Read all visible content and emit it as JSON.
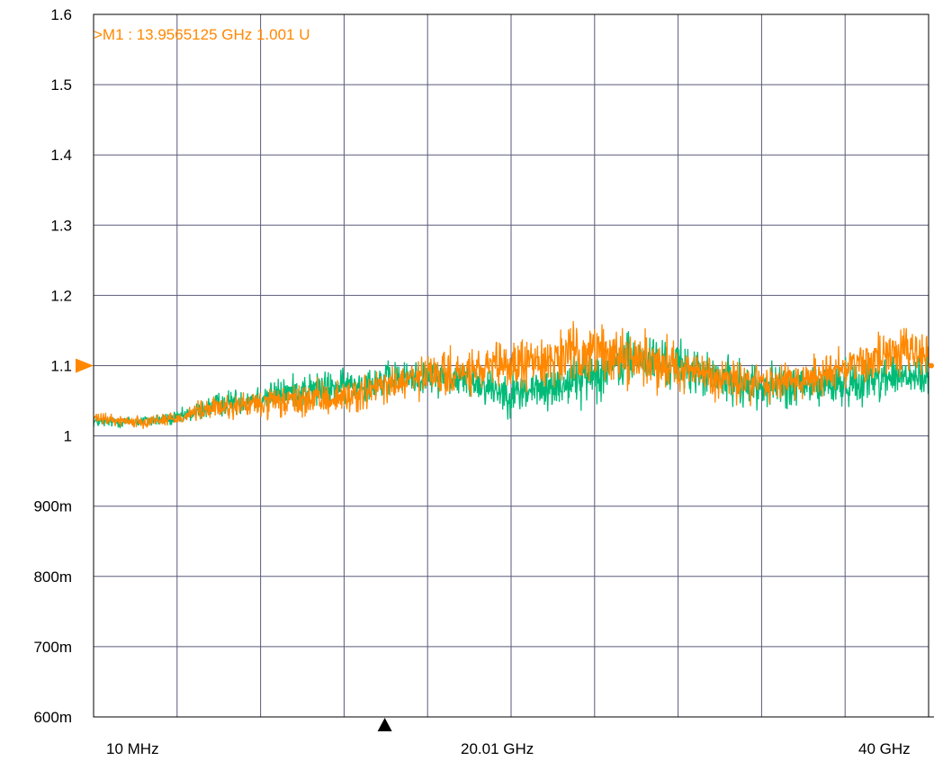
{
  "chart_data": {
    "type": "line",
    "title": "",
    "xlabel": "",
    "ylabel": "",
    "xlim_ghz": [
      0.01,
      40
    ],
    "ylim": [
      0.6,
      1.6
    ],
    "y_ticks": [
      {
        "value": 1.6,
        "label": "1.6"
      },
      {
        "value": 1.5,
        "label": "1.5"
      },
      {
        "value": 1.4,
        "label": "1.4"
      },
      {
        "value": 1.3,
        "label": "1.3"
      },
      {
        "value": 1.2,
        "label": "1.2"
      },
      {
        "value": 1.1,
        "label": "1.1"
      },
      {
        "value": 1.0,
        "label": "1"
      },
      {
        "value": 0.9,
        "label": "900m"
      },
      {
        "value": 0.8,
        "label": "800m"
      },
      {
        "value": 0.7,
        "label": "700m"
      },
      {
        "value": 0.6,
        "label": "600m"
      }
    ],
    "x_tick_labels": {
      "start": "10 MHz",
      "center": "20.01 GHz",
      "stop": "40 GHz"
    },
    "grid": true,
    "x_divisions": 10,
    "y_divisions": 10,
    "reference_level": 1.1,
    "marker": {
      "label": ">M1  :  13.9565125 GHz  1.001  U",
      "x_ghz": 13.9565125,
      "y": 1.001
    },
    "series": [
      {
        "color": "#00bb77",
        "x_ghz": [
          0.01,
          2,
          4,
          5,
          6,
          8,
          10,
          12,
          14,
          16,
          18,
          19,
          20,
          22,
          24,
          25,
          26,
          28,
          30,
          32,
          34,
          36,
          37,
          38,
          40
        ],
        "y": [
          1.02,
          1.02,
          1.025,
          1.035,
          1.045,
          1.055,
          1.065,
          1.07,
          1.08,
          1.085,
          1.08,
          1.07,
          1.06,
          1.07,
          1.09,
          1.1,
          1.11,
          1.1,
          1.08,
          1.07,
          1.07,
          1.075,
          1.08,
          1.085,
          1.08
        ],
        "spread": [
          0.012,
          0.012,
          0.015,
          0.02,
          0.025,
          0.03,
          0.035,
          0.035,
          0.035,
          0.035,
          0.04,
          0.04,
          0.045,
          0.05,
          0.055,
          0.055,
          0.055,
          0.05,
          0.045,
          0.045,
          0.045,
          0.045,
          0.045,
          0.045,
          0.045
        ]
      },
      {
        "color": "#ff8800",
        "x_ghz": [
          0.01,
          2,
          4,
          5,
          6,
          8,
          10,
          12,
          14,
          16,
          18,
          20,
          22,
          24,
          26,
          28,
          30,
          32,
          34,
          36,
          38,
          40
        ],
        "y": [
          1.025,
          1.02,
          1.025,
          1.035,
          1.04,
          1.045,
          1.05,
          1.055,
          1.07,
          1.085,
          1.09,
          1.1,
          1.11,
          1.12,
          1.11,
          1.1,
          1.08,
          1.075,
          1.08,
          1.1,
          1.115,
          1.12
        ],
        "spread": [
          0.012,
          0.012,
          0.015,
          0.02,
          0.025,
          0.03,
          0.035,
          0.035,
          0.04,
          0.045,
          0.045,
          0.05,
          0.055,
          0.06,
          0.055,
          0.05,
          0.045,
          0.045,
          0.045,
          0.05,
          0.05,
          0.05
        ]
      }
    ]
  },
  "colors": {
    "grid": "#5a5a7a",
    "frame": "#000000",
    "marker_text": "#ff8800",
    "ref_arrow": "#ff8800"
  }
}
